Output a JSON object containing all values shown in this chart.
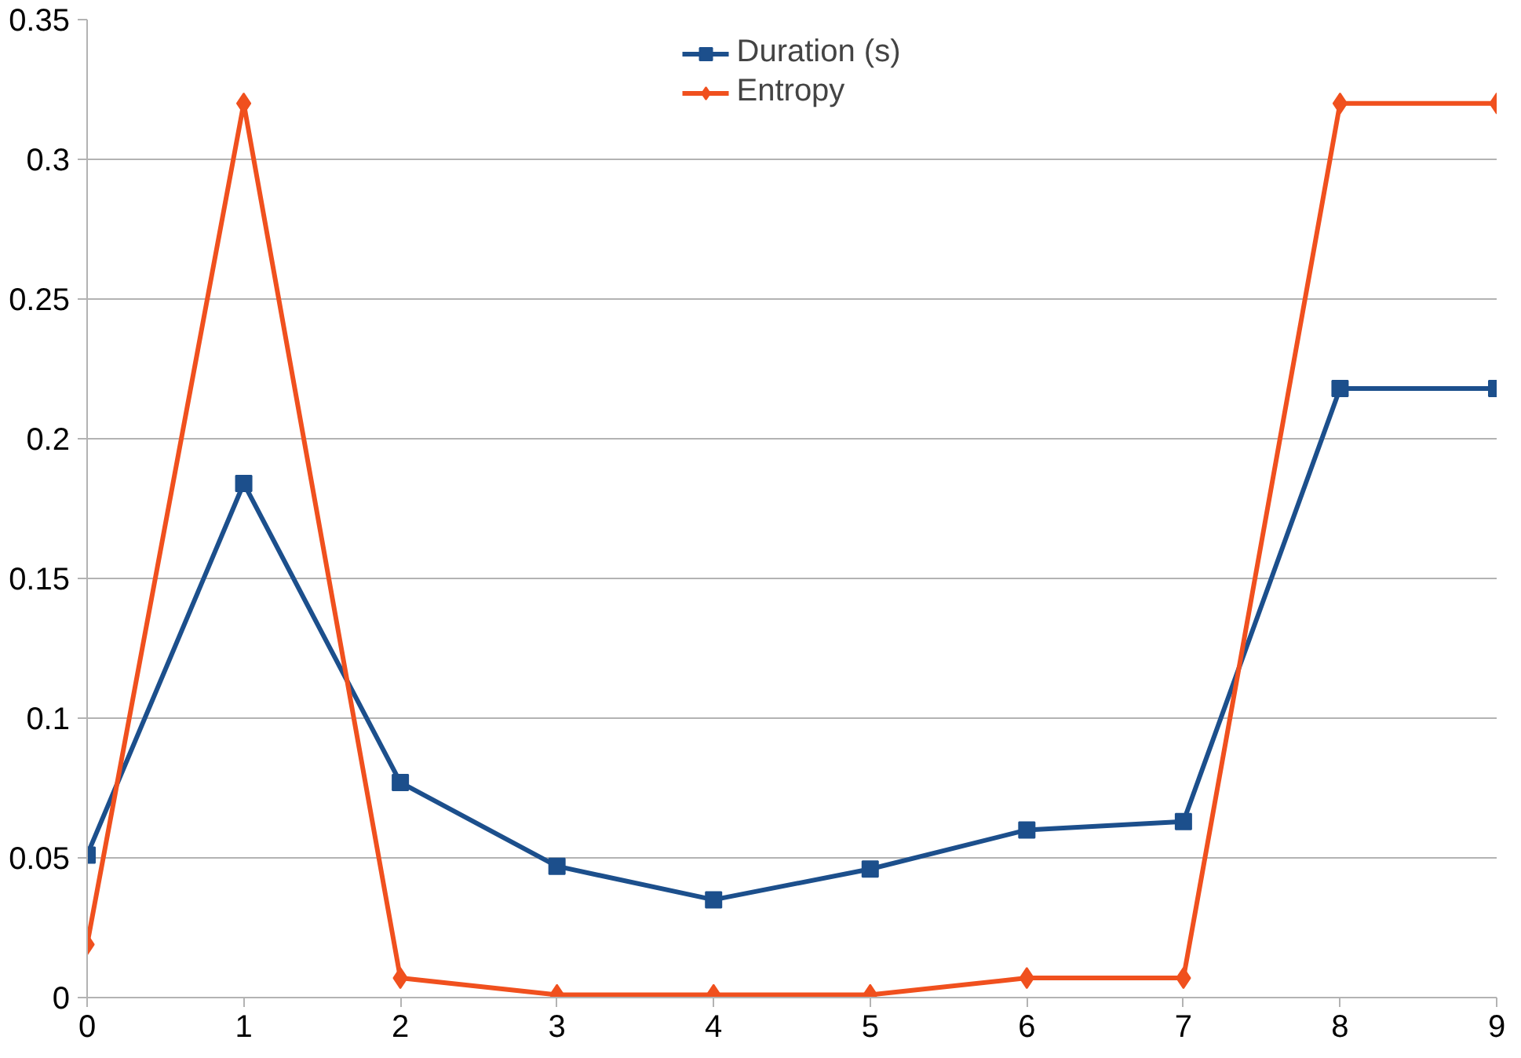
{
  "chart_data": {
    "type": "line",
    "x": [
      0,
      1,
      2,
      3,
      4,
      5,
      6,
      7,
      8,
      9
    ],
    "series": [
      {
        "name": "Duration (s)",
        "color": "#1c4f8c",
        "marker": "square",
        "values": [
          0.051,
          0.184,
          0.077,
          0.047,
          0.035,
          0.046,
          0.06,
          0.063,
          0.218,
          0.218
        ]
      },
      {
        "name": "Entropy",
        "color": "#f0501e",
        "marker": "diamond",
        "values": [
          0.019,
          0.32,
          0.007,
          0.001,
          0.001,
          0.001,
          0.007,
          0.007,
          0.32,
          0.32
        ]
      }
    ],
    "xlim": [
      0,
      9
    ],
    "xticks": [
      0,
      1,
      2,
      3,
      4,
      5,
      6,
      7,
      8,
      9
    ],
    "ylim": [
      0,
      0.35
    ],
    "yticks": [
      0,
      0.05,
      0.1,
      0.15,
      0.2,
      0.25,
      0.3,
      0.35
    ],
    "grid": "y",
    "legend": "top"
  }
}
